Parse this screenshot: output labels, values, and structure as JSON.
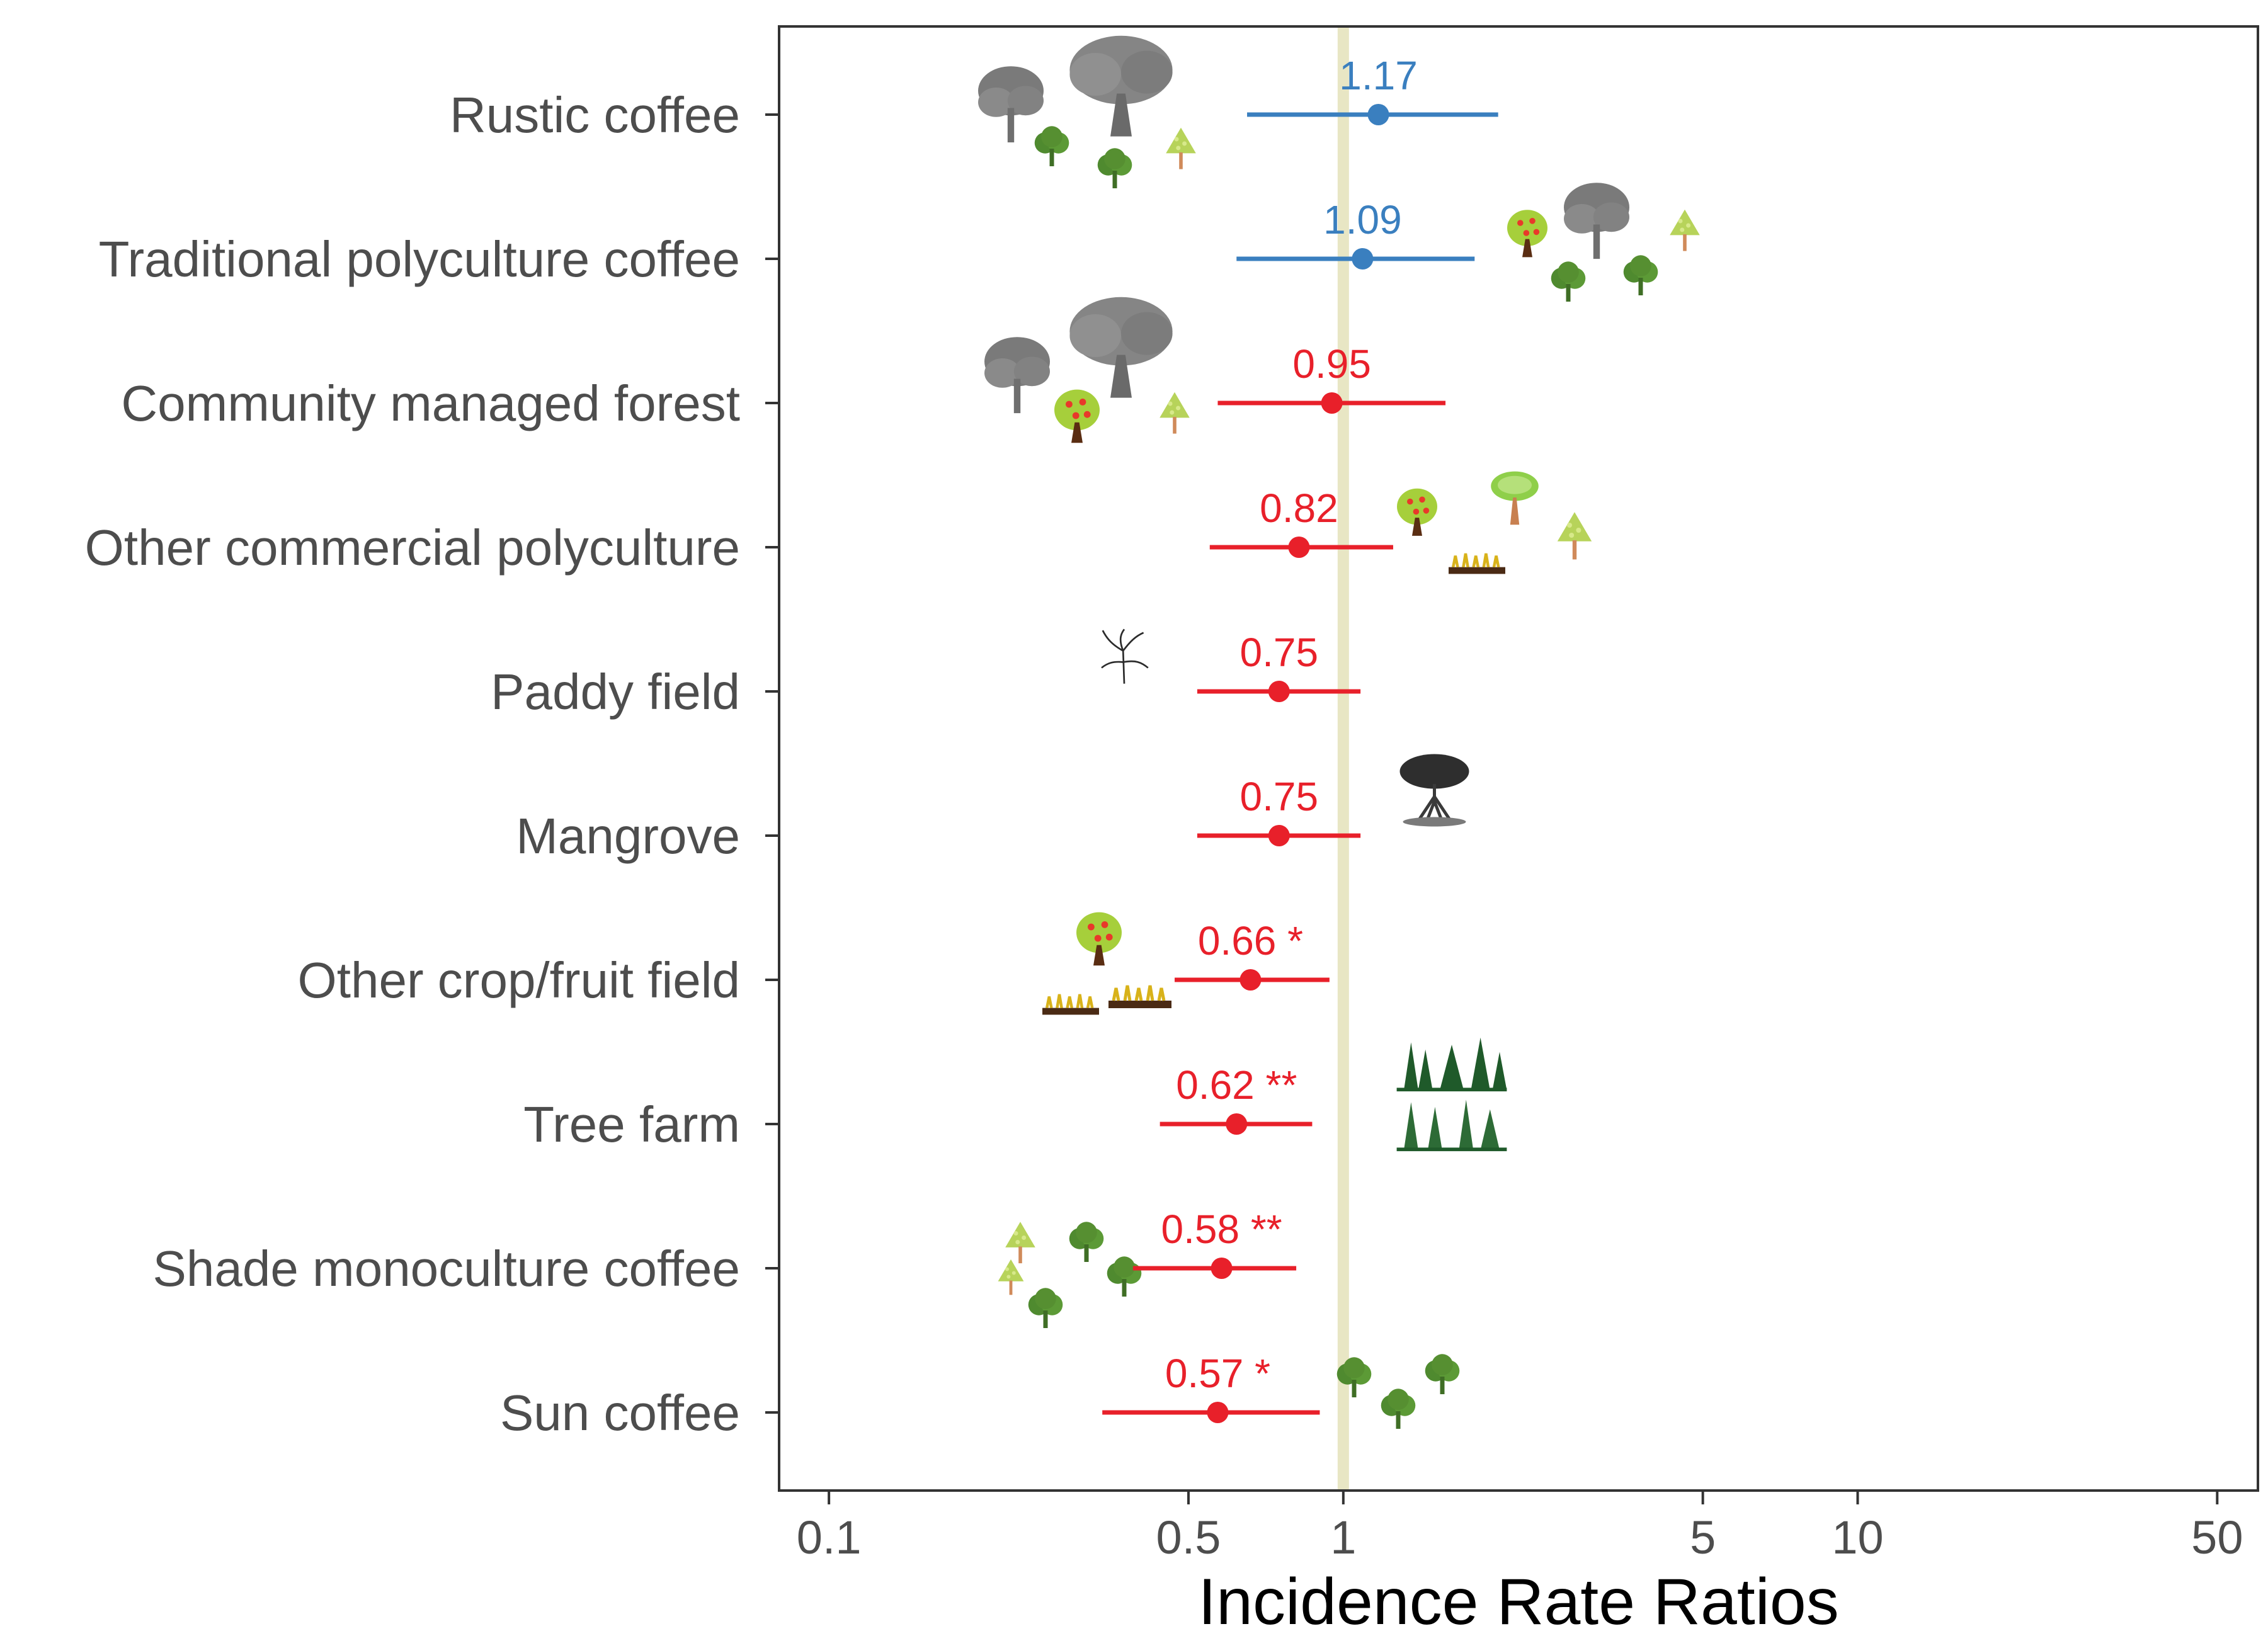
{
  "chart_data": {
    "type": "forest",
    "title": "",
    "xlabel": "Incidence Rate Ratios",
    "ylabel": "",
    "xscale": "log",
    "xlim": [
      0.08,
      60
    ],
    "xticks": [
      0.1,
      0.5,
      1,
      5,
      10,
      50
    ],
    "xtick_labels": [
      "0.1",
      "0.5",
      "1",
      "5",
      "10",
      "50"
    ],
    "reference_line": 1,
    "reference_color": "#e8e6c4",
    "colors": {
      "positive": "#3a7fbf",
      "negative": "#e8202a",
      "text": "#4d4d4d"
    },
    "rows": [
      {
        "category": "Rustic coffee",
        "estimate": 1.17,
        "ci_low": 0.65,
        "ci_high": 2.0,
        "label": "1.17",
        "significance": "",
        "color": "#3a7fbf",
        "icons": [
          "gray-tree-icon",
          "gray-oak-icon",
          "green-shrub-icon",
          "green-shrub-icon",
          "lime-tree-icon"
        ]
      },
      {
        "category": "Traditional polyculture coffee",
        "estimate": 1.09,
        "ci_low": 0.62,
        "ci_high": 1.8,
        "label": "1.09",
        "significance": "",
        "color": "#3a7fbf",
        "icons": [
          "fruit-tree-icon",
          "gray-tree-icon",
          "lime-tree-icon",
          "green-shrub-icon",
          "green-shrub-icon"
        ]
      },
      {
        "category": "Community managed forest",
        "estimate": 0.95,
        "ci_low": 0.57,
        "ci_high": 1.58,
        "label": "0.95",
        "significance": "",
        "color": "#e8202a",
        "icons": [
          "gray-tree-icon",
          "gray-oak-icon",
          "fruit-tree-icon",
          "lime-tree-icon"
        ]
      },
      {
        "category": "Other commercial polyculture",
        "estimate": 0.82,
        "ci_low": 0.55,
        "ci_high": 1.25,
        "label": "0.82",
        "significance": "",
        "color": "#e8202a",
        "icons": [
          "fruit-tree-icon",
          "green-tree-icon",
          "crop-row-icon",
          "lime-tree-icon"
        ]
      },
      {
        "category": "Paddy field",
        "estimate": 0.75,
        "ci_low": 0.52,
        "ci_high": 1.08,
        "label": "0.75",
        "significance": "",
        "color": "#e8202a",
        "icons": [
          "rice-plant-icon"
        ]
      },
      {
        "category": "Mangrove",
        "estimate": 0.75,
        "ci_low": 0.52,
        "ci_high": 1.08,
        "label": "0.75",
        "significance": "",
        "color": "#e8202a",
        "icons": [
          "mangrove-icon"
        ]
      },
      {
        "category": "Other crop/fruit field",
        "estimate": 0.66,
        "ci_low": 0.47,
        "ci_high": 0.94,
        "label": "0.66",
        "significance": "*",
        "color": "#e8202a",
        "icons": [
          "fruit-tree-icon",
          "crop-row-icon",
          "crop-row-icon"
        ]
      },
      {
        "category": "Tree farm",
        "estimate": 0.62,
        "ci_low": 0.44,
        "ci_high": 0.87,
        "label": "0.62",
        "significance": "**",
        "color": "#e8202a",
        "icons": [
          "conifer-forest-icon"
        ]
      },
      {
        "category": "Shade monoculture coffee",
        "estimate": 0.58,
        "ci_low": 0.39,
        "ci_high": 0.81,
        "label": "0.58",
        "significance": "**",
        "color": "#e8202a",
        "icons": [
          "lime-tree-icon",
          "lime-tree-icon",
          "green-shrub-icon",
          "green-shrub-icon",
          "green-shrub-icon"
        ]
      },
      {
        "category": "Sun coffee",
        "estimate": 0.57,
        "ci_low": 0.34,
        "ci_high": 0.9,
        "label": "0.57",
        "significance": "*",
        "color": "#e8202a",
        "icons": [
          "green-shrub-icon",
          "green-shrub-icon",
          "green-shrub-icon"
        ]
      }
    ]
  }
}
